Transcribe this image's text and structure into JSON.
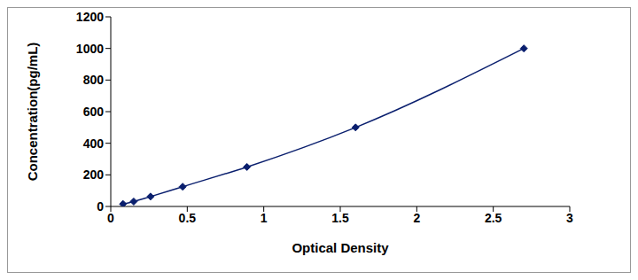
{
  "chart_data": {
    "type": "line",
    "x_label": "Optical Density",
    "y_label": "Concentration(pg/mL)",
    "x": [
      0.08,
      0.15,
      0.26,
      0.47,
      0.89,
      1.6,
      2.7
    ],
    "values": [
      15.6,
      31.2,
      62.5,
      125,
      250,
      500,
      1000
    ],
    "color": "#0a1f6e",
    "marker": "diamond",
    "xlim": [
      0,
      3
    ],
    "xticks": [
      0,
      0.5,
      1,
      1.5,
      2,
      2.5,
      3
    ],
    "ylim": [
      0,
      1200
    ],
    "yticks": [
      0,
      200,
      400,
      600,
      800,
      1000,
      1200
    ],
    "grid": false
  }
}
